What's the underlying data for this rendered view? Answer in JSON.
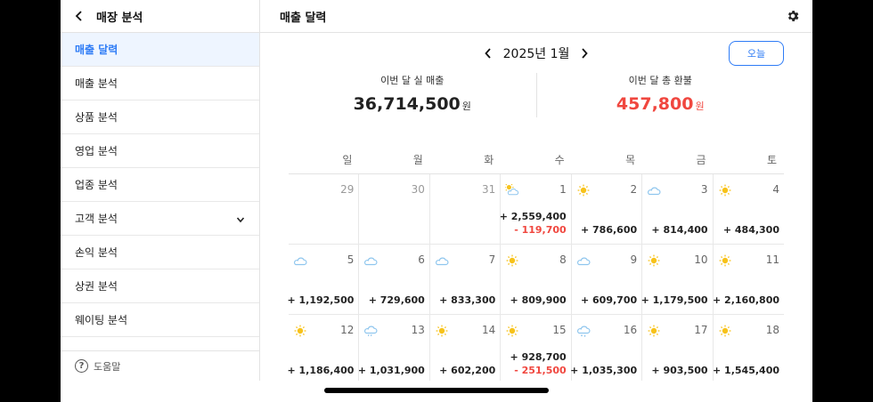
{
  "sidebar": {
    "title": "매장 분석",
    "items": [
      {
        "label": "매출 달력",
        "active": true,
        "chevron": false
      },
      {
        "label": "매출 분석",
        "active": false,
        "chevron": false
      },
      {
        "label": "상품 분석",
        "active": false,
        "chevron": false
      },
      {
        "label": "영업 분석",
        "active": false,
        "chevron": false
      },
      {
        "label": "업종 분석",
        "active": false,
        "chevron": false
      },
      {
        "label": "고객 분석",
        "active": false,
        "chevron": true
      },
      {
        "label": "손익 분석",
        "active": false,
        "chevron": false
      },
      {
        "label": "상권 분석",
        "active": false,
        "chevron": false
      },
      {
        "label": "웨이팅 분석",
        "active": false,
        "chevron": false
      }
    ],
    "help_label": "도움말"
  },
  "main": {
    "title": "매출 달력",
    "month_label": "2025년 1월",
    "today_label": "오늘",
    "summary": {
      "sales_label": "이번 달 실 매출",
      "sales_value": "36,714,500",
      "sales_unit": "원",
      "refund_label": "이번 달 총 환불",
      "refund_value": "457,800",
      "refund_unit": "원"
    }
  },
  "calendar": {
    "weekdays": [
      "일",
      "월",
      "화",
      "수",
      "목",
      "금",
      "토"
    ],
    "weeks": [
      [
        {
          "day": "29",
          "other": true
        },
        {
          "day": "30",
          "other": true
        },
        {
          "day": "31",
          "other": true
        },
        {
          "day": "1",
          "weather": "partly-cloudy",
          "sales": "+ 2,559,400",
          "refund": "- 119,700"
        },
        {
          "day": "2",
          "weather": "sunny",
          "sales": "+ 786,600"
        },
        {
          "day": "3",
          "weather": "cloudy",
          "sales": "+ 814,400"
        },
        {
          "day": "4",
          "weather": "sunny",
          "sales": "+ 484,300"
        }
      ],
      [
        {
          "day": "5",
          "weather": "cloudy",
          "sales": "+ 1,192,500"
        },
        {
          "day": "6",
          "weather": "cloudy",
          "sales": "+ 729,600"
        },
        {
          "day": "7",
          "weather": "cloudy",
          "sales": "+ 833,300"
        },
        {
          "day": "8",
          "weather": "sunny",
          "sales": "+ 809,900"
        },
        {
          "day": "9",
          "weather": "cloudy",
          "sales": "+ 609,700"
        },
        {
          "day": "10",
          "weather": "sunny",
          "sales": "+ 1,179,500"
        },
        {
          "day": "11",
          "weather": "sunny",
          "sales": "+ 2,160,800"
        }
      ],
      [
        {
          "day": "12",
          "weather": "sunny",
          "sales": "+ 1,186,400"
        },
        {
          "day": "13",
          "weather": "rain",
          "sales": "+ 1,031,900"
        },
        {
          "day": "14",
          "weather": "sunny",
          "sales": "+ 602,200"
        },
        {
          "day": "15",
          "weather": "sunny",
          "sales": "+ 928,700",
          "refund": "- 251,500"
        },
        {
          "day": "16",
          "weather": "snow",
          "sales": "+ 1,035,300"
        },
        {
          "day": "17",
          "weather": "sunny",
          "sales": "+ 903,500"
        },
        {
          "day": "18",
          "weather": "sunny",
          "sales": "+ 1,545,400"
        }
      ]
    ]
  },
  "colors": {
    "accent": "#2e7cf6",
    "refund": "#f0473f",
    "sun": "#f7c21a",
    "cloud": "#8fc6ee"
  }
}
